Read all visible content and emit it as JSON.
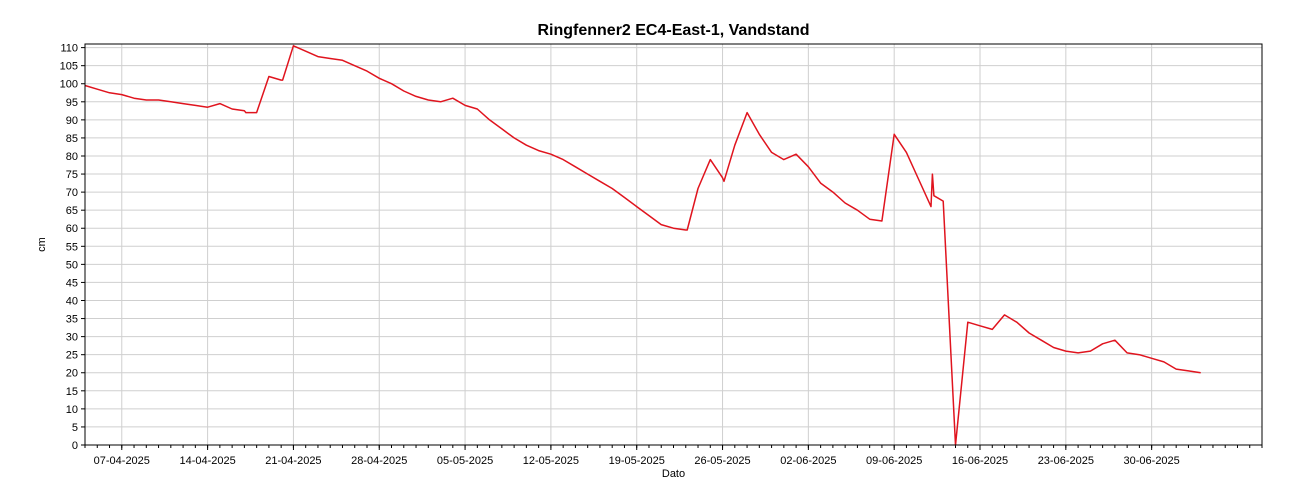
{
  "chart_data": {
    "type": "line",
    "title": "Ringfenner2 EC4-East-1, Vandstand",
    "xlabel": "Dato",
    "ylabel": "cm",
    "xlim": [
      "2025-04-04",
      "2025-07-09"
    ],
    "ylim": [
      0,
      111
    ],
    "y_ticks": [
      0,
      5,
      10,
      15,
      20,
      25,
      30,
      35,
      40,
      45,
      50,
      55,
      60,
      65,
      70,
      75,
      80,
      85,
      90,
      95,
      100,
      105,
      110
    ],
    "x_ticks": [
      "07-04-2025",
      "14-04-2025",
      "21-04-2025",
      "28-04-2025",
      "05-05-2025",
      "12-05-2025",
      "19-05-2025",
      "26-05-2025",
      "02-06-2025",
      "09-06-2025",
      "16-06-2025",
      "23-06-2025",
      "30-06-2025"
    ],
    "grid": true,
    "legend": "none",
    "line_color": "#e0141e",
    "series": [
      {
        "x": [
          "2025-04-04",
          "2025-04-05",
          "2025-04-06",
          "2025-04-07",
          "2025-04-08",
          "2025-04-09",
          "2025-04-10",
          "2025-04-11",
          "2025-04-12",
          "2025-04-13",
          "2025-04-14",
          "2025-04-15",
          "2025-04-16",
          "2025-04-17",
          "2025-04-17",
          "2025-04-18",
          "2025-04-19",
          "2025-04-20",
          "2025-04-20",
          "2025-04-21",
          "2025-04-22",
          "2025-04-23",
          "2025-04-24",
          "2025-04-25",
          "2025-04-26",
          "2025-04-27",
          "2025-04-28",
          "2025-04-29",
          "2025-04-30",
          "2025-05-01",
          "2025-05-02",
          "2025-05-03",
          "2025-05-04",
          "2025-05-05",
          "2025-05-06",
          "2025-05-07",
          "2025-05-08",
          "2025-05-09",
          "2025-05-10",
          "2025-05-11",
          "2025-05-12",
          "2025-05-13",
          "2025-05-14",
          "2025-05-15",
          "2025-05-16",
          "2025-05-17",
          "2025-05-18",
          "2025-05-19",
          "2025-05-20",
          "2025-05-21",
          "2025-05-22",
          "2025-05-23",
          "2025-05-23",
          "2025-05-24",
          "2025-05-25",
          "2025-05-26",
          "2025-05-26",
          "2025-05-27",
          "2025-05-28",
          "2025-05-29",
          "2025-05-30",
          "2025-05-31",
          "2025-06-01",
          "2025-06-02",
          "2025-06-03",
          "2025-06-04",
          "2025-06-05",
          "2025-06-06",
          "2025-06-07",
          "2025-06-08",
          "2025-06-09",
          "2025-06-10",
          "2025-06-11",
          "2025-06-12",
          "2025-06-12",
          "2025-06-12",
          "2025-06-13",
          "2025-06-14",
          "2025-06-15",
          "2025-06-16",
          "2025-06-17",
          "2025-06-18",
          "2025-06-19",
          "2025-06-20",
          "2025-06-21",
          "2025-06-22",
          "2025-06-23",
          "2025-06-24",
          "2025-06-25",
          "2025-06-26",
          "2025-06-27",
          "2025-06-28",
          "2025-06-29",
          "2025-06-30",
          "2025-07-01",
          "2025-07-02",
          "2025-07-03",
          "2025-07-04"
        ],
        "y": [
          99.5,
          98.5,
          97.5,
          97,
          96,
          95.5,
          95.5,
          95,
          94.5,
          94,
          93.5,
          94.5,
          93,
          92.5,
          92,
          92,
          102,
          101,
          101,
          110.5,
          109,
          107.5,
          107,
          106.5,
          105,
          103.5,
          101.5,
          100,
          98,
          96.5,
          95.5,
          95,
          96,
          94,
          93,
          90,
          87.5,
          85,
          83,
          81.5,
          80.5,
          79,
          77,
          75,
          73,
          71,
          68.5,
          66,
          63.5,
          61,
          60,
          59.5,
          59.5,
          71,
          79,
          74,
          73,
          83,
          92,
          86,
          81,
          79,
          80.5,
          77,
          72.5,
          70,
          67,
          65,
          62.5,
          62,
          86,
          81,
          73.5,
          66,
          75,
          69,
          67.5,
          0,
          34,
          33,
          32,
          36,
          34,
          31,
          29,
          27,
          26,
          25.5,
          26,
          28,
          29,
          25.5,
          25,
          24,
          23,
          21,
          20.5,
          20
        ]
      }
    ]
  }
}
